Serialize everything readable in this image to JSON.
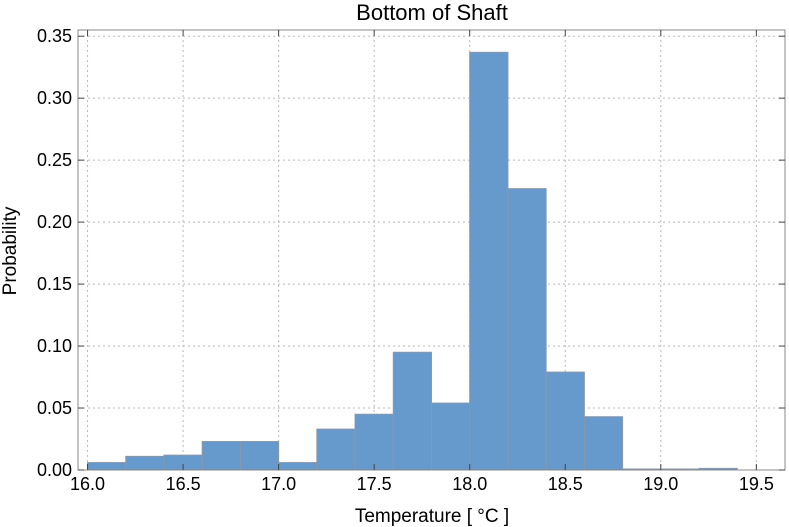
{
  "chart_data": {
    "type": "bar",
    "title": "Bottom of Shaft",
    "xlabel": "Temperature [ °C ]",
    "ylabel": "Probability",
    "xlim": [
      15.95,
      19.65
    ],
    "ylim": [
      0,
      0.355
    ],
    "xticks": [
      "16.0",
      "16.5",
      "17.0",
      "17.5",
      "18.0",
      "18.5",
      "19.0",
      "19.5"
    ],
    "yticks": [
      "0.00",
      "0.05",
      "0.10",
      "0.15",
      "0.20",
      "0.25",
      "0.30",
      "0.35"
    ],
    "grid": true,
    "bin_width": 0.2,
    "bins": [
      {
        "x0": 16.0,
        "value": 0.006
      },
      {
        "x0": 16.2,
        "value": 0.011
      },
      {
        "x0": 16.4,
        "value": 0.012
      },
      {
        "x0": 16.6,
        "value": 0.023
      },
      {
        "x0": 16.8,
        "value": 0.023
      },
      {
        "x0": 17.0,
        "value": 0.006
      },
      {
        "x0": 17.2,
        "value": 0.033
      },
      {
        "x0": 17.4,
        "value": 0.045
      },
      {
        "x0": 17.6,
        "value": 0.095
      },
      {
        "x0": 17.8,
        "value": 0.054
      },
      {
        "x0": 18.0,
        "value": 0.337
      },
      {
        "x0": 18.2,
        "value": 0.227
      },
      {
        "x0": 18.4,
        "value": 0.079
      },
      {
        "x0": 18.6,
        "value": 0.043
      },
      {
        "x0": 18.8,
        "value": 0.0008
      },
      {
        "x0": 19.0,
        "value": 0.0008
      },
      {
        "x0": 19.2,
        "value": 0.0013
      },
      {
        "x0": 19.4,
        "value": 0.0
      }
    ],
    "bar_color": "#6699cc",
    "bar_edge_color": "#8c97a8",
    "grid_color": "#b8b8b8"
  }
}
